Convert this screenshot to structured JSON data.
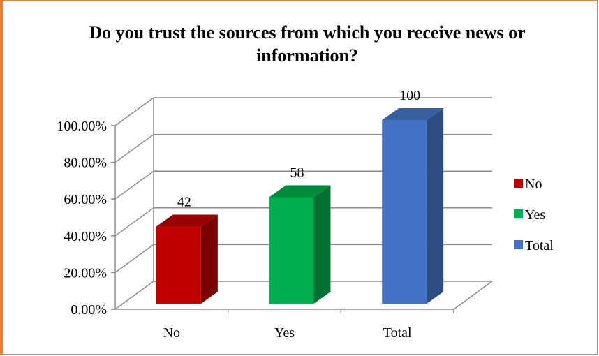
{
  "chart_data": {
    "type": "bar",
    "title": "Do you trust the sources from which you receive news or information?",
    "categories": [
      "No",
      "Yes",
      "Total"
    ],
    "values": [
      42,
      58,
      100
    ],
    "value_labels": [
      "42",
      "58",
      "100"
    ],
    "colors": [
      "#c00000",
      "#00b050",
      "#4472c4"
    ],
    "side_colors": [
      "#7a0000",
      "#007031",
      "#2d4c80"
    ],
    "top_colors": [
      "#960000",
      "#008a3d",
      "#3860a0"
    ],
    "y_ticks": [
      "0.00%",
      "20.00%",
      "40.00%",
      "60.00%",
      "80.00%",
      "100.00%"
    ],
    "ylim": [
      0,
      100
    ],
    "legend": [
      "No",
      "Yes",
      "Total"
    ],
    "legend_position": "right",
    "grid": true
  }
}
